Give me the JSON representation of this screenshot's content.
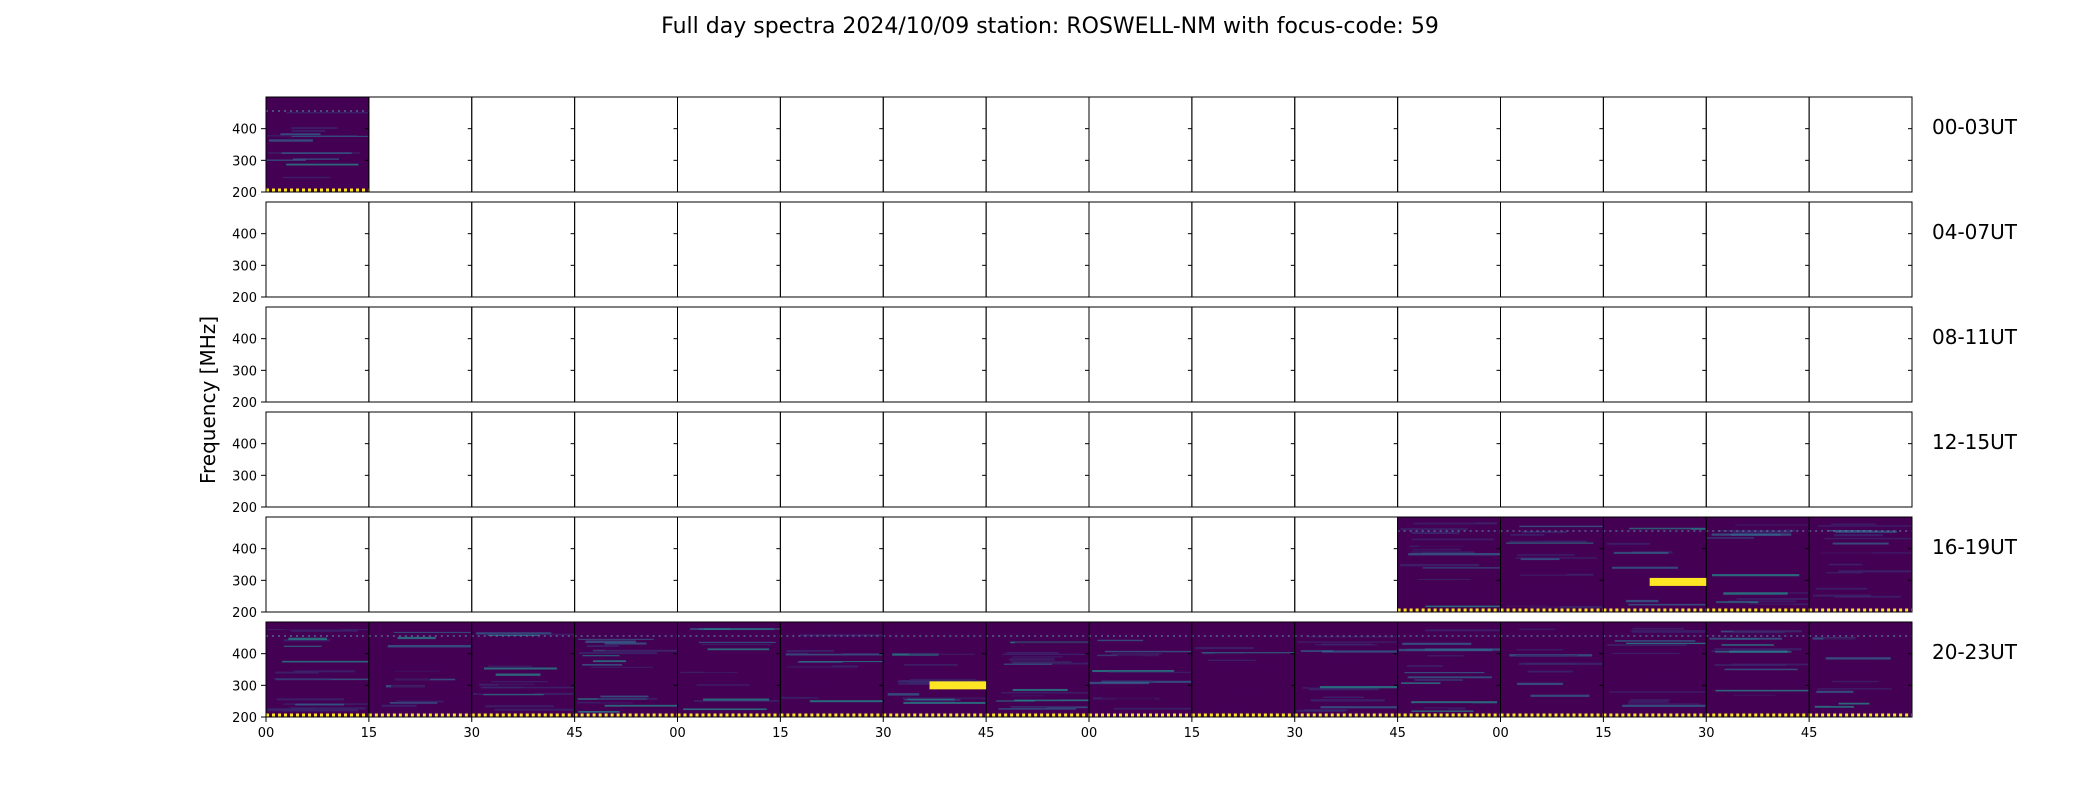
{
  "chart_data": {
    "type": "heatmap",
    "title": "Full day spectra 2024/10/09 station: ROSWELL-NM with focus-code: 59",
    "ylabel": "Frequency [MHz]",
    "xlabel": "",
    "ylim": [
      200,
      500
    ],
    "yticks": [
      200,
      300,
      400
    ],
    "xtick_labels": [
      "00",
      "15",
      "30",
      "45",
      "00",
      "15",
      "30",
      "45",
      "00",
      "15",
      "30",
      "45",
      "00",
      "15",
      "30",
      "45"
    ],
    "colormap": {
      "low": "#440154",
      "mid": "#21918c",
      "high": "#fde725"
    },
    "panels_per_row": 16,
    "rows": [
      {
        "label": "00-03UT",
        "filled": [
          0
        ]
      },
      {
        "label": "04-07UT",
        "filled": []
      },
      {
        "label": "08-11UT",
        "filled": []
      },
      {
        "label": "12-15UT",
        "filled": []
      },
      {
        "label": "16-19UT",
        "filled": [
          11,
          12,
          13,
          14,
          15
        ]
      },
      {
        "label": "20-23UT",
        "filled": [
          0,
          1,
          2,
          3,
          4,
          5,
          6,
          7,
          8,
          9,
          10,
          11,
          12,
          13,
          14,
          15
        ]
      }
    ],
    "highlights": [
      {
        "row": 4,
        "panel": 13,
        "freq": 295
      },
      {
        "row": 5,
        "panel": 6,
        "freq": 300
      }
    ]
  }
}
